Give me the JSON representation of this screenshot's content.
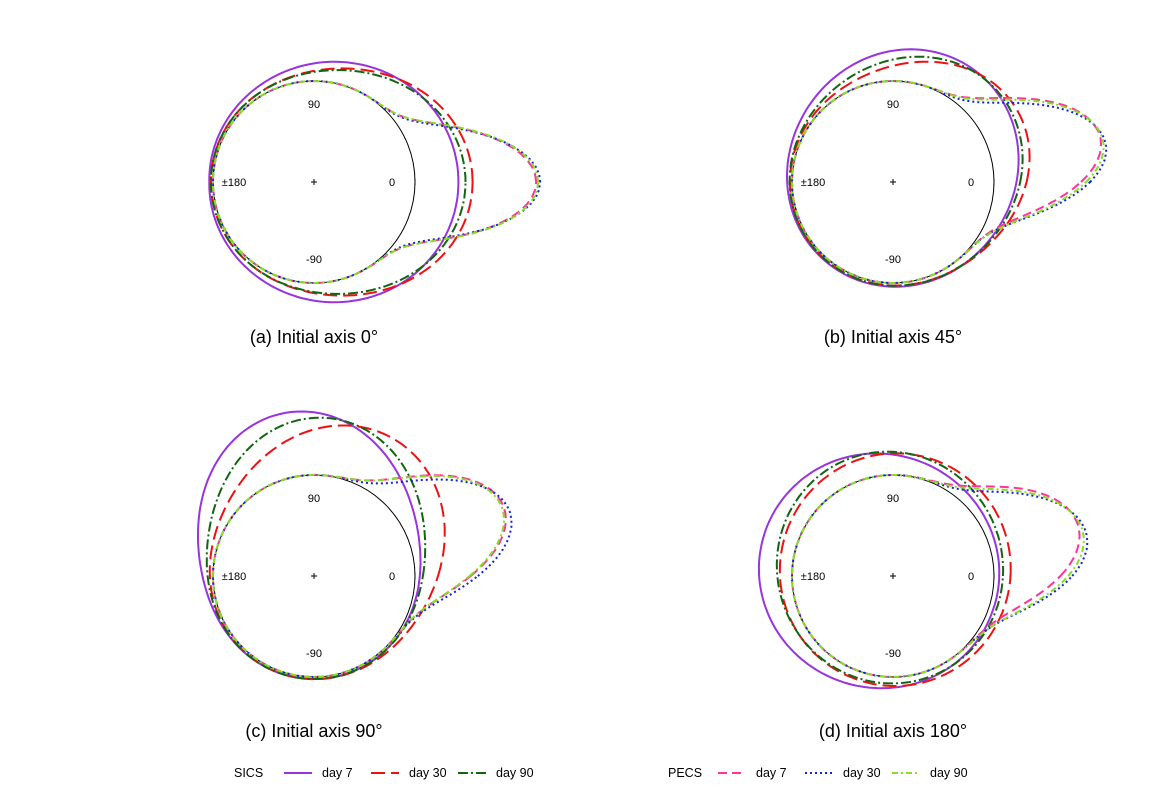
{
  "chart_data": {
    "type": "polar-line",
    "angular_tick_labels": [
      "90",
      "±180",
      "0",
      "-90"
    ],
    "panels": [
      {
        "caption": "(a) Initial axis 0°",
        "series": [
          {
            "name": "day 7",
            "group": "SICS",
            "color": "#9933dd",
            "dash": "solid",
            "params": {
              "bulge": 0.4,
              "dir": 0,
              "width": 1.1,
              "base": 0.03
            }
          },
          {
            "name": "day 30",
            "group": "SICS",
            "color": "#ee1111",
            "dash": "longdash",
            "params": {
              "bulge": 0.55,
              "dir": 0,
              "width": 0.8,
              "base": 0.02
            }
          },
          {
            "name": "day 90",
            "group": "SICS",
            "color": "#116611",
            "dash": "dashdot",
            "params": {
              "bulge": 0.48,
              "dir": 0,
              "width": 0.8,
              "base": 0.02
            }
          },
          {
            "name": "day 7",
            "group": "PECS",
            "color": "#ff3399",
            "dash": "dash",
            "params": {
              "bulge": 1.2,
              "dir": 0,
              "width": 0.28,
              "base": 0.0
            }
          },
          {
            "name": "day 30",
            "group": "PECS",
            "color": "#1122dd",
            "dash": "dot",
            "params": {
              "bulge": 1.24,
              "dir": 0,
              "width": 0.27,
              "base": 0.0
            }
          },
          {
            "name": "day 90",
            "group": "PECS",
            "color": "#88dd22",
            "dash": "dashdot2",
            "params": {
              "bulge": 1.22,
              "dir": 0,
              "width": 0.28,
              "base": 0.0
            }
          }
        ]
      },
      {
        "caption": "(b) Initial axis 45°",
        "series": [
          {
            "name": "day 7",
            "group": "SICS",
            "color": "#9933dd",
            "dash": "solid",
            "params": {
              "bulge": 0.34,
              "dir": 55,
              "width": 0.9,
              "base": 0.03
            }
          },
          {
            "name": "day 30",
            "group": "SICS",
            "color": "#ee1111",
            "dash": "longdash",
            "params": {
              "bulge": 0.4,
              "dir": 30,
              "width": 0.7,
              "base": 0.02
            }
          },
          {
            "name": "day 90",
            "group": "SICS",
            "color": "#116611",
            "dash": "dashdot",
            "params": {
              "bulge": 0.35,
              "dir": 40,
              "width": 0.8,
              "base": 0.02
            }
          },
          {
            "name": "day 7",
            "group": "PECS",
            "color": "#ff3399",
            "dash": "dash",
            "params": {
              "bulge": 1.1,
              "dir": 12,
              "width": 0.3,
              "base": 0.0
            }
          },
          {
            "name": "day 30",
            "group": "PECS",
            "color": "#1122dd",
            "dash": "dot",
            "params": {
              "bulge": 1.14,
              "dir": 10,
              "width": 0.29,
              "base": 0.0
            }
          },
          {
            "name": "day 90",
            "group": "PECS",
            "color": "#88dd22",
            "dash": "dashdot2",
            "params": {
              "bulge": 1.12,
              "dir": 11,
              "width": 0.3,
              "base": 0.0
            }
          }
        ]
      },
      {
        "caption": "(c) Initial axis 90°",
        "series": [
          {
            "name": "day 7",
            "group": "SICS",
            "color": "#9933dd",
            "dash": "solid",
            "params": {
              "bulge": 0.62,
              "dir": 100,
              "width": 0.7,
              "base": 0.02
            }
          },
          {
            "name": "day 30",
            "group": "SICS",
            "color": "#ee1111",
            "dash": "longdash",
            "params": {
              "bulge": 0.55,
              "dir": 60,
              "width": 0.75,
              "base": 0.02
            }
          },
          {
            "name": "day 90",
            "group": "SICS",
            "color": "#116611",
            "dash": "dashdot",
            "params": {
              "bulge": 0.55,
              "dir": 85,
              "width": 0.7,
              "base": 0.02
            }
          },
          {
            "name": "day 7",
            "group": "PECS",
            "color": "#ff3399",
            "dash": "dash",
            "params": {
              "bulge": 1.0,
              "dir": 20,
              "width": 0.32,
              "base": 0.0
            }
          },
          {
            "name": "day 30",
            "group": "PECS",
            "color": "#1122dd",
            "dash": "dot",
            "params": {
              "bulge": 1.04,
              "dir": 18,
              "width": 0.31,
              "base": 0.0
            }
          },
          {
            "name": "day 90",
            "group": "PECS",
            "color": "#88dd22",
            "dash": "dashdot2",
            "params": {
              "bulge": 0.98,
              "dir": 20,
              "width": 0.32,
              "base": 0.0
            }
          }
        ]
      },
      {
        "caption": "(d) Initial axis 180°",
        "series": [
          {
            "name": "day 7",
            "group": "SICS",
            "color": "#9933dd",
            "dash": "solid",
            "params": {
              "bulge": 0.3,
              "dir": 160,
              "width": 1.1,
              "base": 0.04
            }
          },
          {
            "name": "day 30",
            "group": "SICS",
            "color": "#ee1111",
            "dash": "longdash",
            "params": {
              "bulge": 0.14,
              "dir": 70,
              "width": 1.2,
              "base": 0.08
            }
          },
          {
            "name": "day 90",
            "group": "SICS",
            "color": "#116611",
            "dash": "dashdot",
            "params": {
              "bulge": 0.18,
              "dir": 110,
              "width": 1.0,
              "base": 0.06
            }
          },
          {
            "name": "day 7",
            "group": "PECS",
            "color": "#ff3399",
            "dash": "dash",
            "params": {
              "bulge": 0.9,
              "dir": 15,
              "width": 0.33,
              "base": 0.0
            }
          },
          {
            "name": "day 30",
            "group": "PECS",
            "color": "#1122dd",
            "dash": "dot",
            "params": {
              "bulge": 0.96,
              "dir": 12,
              "width": 0.32,
              "base": 0.0
            }
          },
          {
            "name": "day 90",
            "group": "PECS",
            "color": "#88dd22",
            "dash": "dashdot2",
            "params": {
              "bulge": 0.93,
              "dir": 13,
              "width": 0.33,
              "base": 0.0
            }
          }
        ]
      }
    ],
    "legend": {
      "groups": [
        {
          "label": "SICS",
          "entries": [
            {
              "label": "day 7",
              "color": "#9933dd",
              "dash": "solid"
            },
            {
              "label": "day 30",
              "color": "#ee1111",
              "dash": "longdash"
            },
            {
              "label": "day 90",
              "color": "#116611",
              "dash": "dashdot"
            }
          ]
        },
        {
          "label": "PECS",
          "entries": [
            {
              "label": "day 7",
              "color": "#ff3399",
              "dash": "dash"
            },
            {
              "label": "day 30",
              "color": "#1122dd",
              "dash": "dot"
            },
            {
              "label": "day 90",
              "color": "#88dd22",
              "dash": "dashdot2"
            }
          ]
        }
      ],
      "placement": "bottom"
    }
  }
}
